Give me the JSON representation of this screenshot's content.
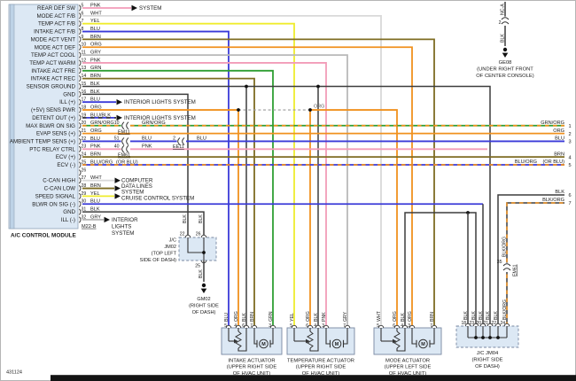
{
  "footer": {
    "code": "431124"
  },
  "colors": {
    "PNK": "#f29cb8",
    "WHT": "#d9d9d9",
    "YEL": "#efec2d",
    "BLU": "#3a3ad8",
    "BRN": "#7e6c22",
    "ORG": "#f0911e",
    "GRY": "#b9b9b9",
    "GRN": "#2f9e33",
    "BLK": "#3d3d3d"
  },
  "module": {
    "name": "A/C CONTROL MODULE",
    "connector_id": "M22-B",
    "pins": [
      {
        "pin": "5",
        "label": "REAR DEF SW",
        "color": "PNK",
        "dest": "rear_def"
      },
      {
        "pin": "6",
        "label": "MODE ACT F/B",
        "color": "WHT"
      },
      {
        "pin": "7",
        "label": "TEMP ACT F/B",
        "color": "YEL"
      },
      {
        "pin": "8",
        "label": "INTAKE ACT F/B",
        "color": "BLU"
      },
      {
        "pin": "9",
        "label": "MODE ACT VENT",
        "color": "BRN"
      },
      {
        "pin": "10",
        "label": "MODE ACT DEF",
        "color": "ORG"
      },
      {
        "pin": "11",
        "label": "TEMP ACT COOL",
        "color": "GRY"
      },
      {
        "pin": "12",
        "label": "TEMP ACT WARM",
        "color": "PNK"
      },
      {
        "pin": "13",
        "label": "INTAKE ACT FRE",
        "color": "GRN"
      },
      {
        "pin": "14",
        "label": "INTAKE ACT REC",
        "color": "BRN"
      },
      {
        "pin": "15",
        "label": "SENSOR GROUND",
        "color": "BLK"
      },
      {
        "pin": "16",
        "label": "GND",
        "color": "BLK"
      },
      {
        "pin": "17",
        "label": "ILL (+)",
        "color": "BLU",
        "dest": "interior_inline"
      },
      {
        "pin": "18",
        "label": "(+5V) SENS PWR",
        "color": "ORG",
        "mid_label": "ORG"
      },
      {
        "pin": "19",
        "label": "DETENT OUT (+)",
        "color": "BLU/BLK",
        "dest": "interior_inline"
      },
      {
        "pin": "20",
        "label": "MAX BLWR ON SIG",
        "color": "GRN/ORG",
        "relabels": [
          "GRN/ORG"
        ]
      },
      {
        "pin": "21",
        "label": "EVAP SENS (+)",
        "color": "ORG"
      },
      {
        "pin": "22",
        "label": "AMBIENT TEMP SENS (+)",
        "color": "BLU",
        "relabels": [
          "BLU",
          "BLU"
        ]
      },
      {
        "pin": "23",
        "label": "PTC RELAY CTRL",
        "color": "PNK",
        "relabels": [
          "PNK"
        ]
      },
      {
        "pin": "24",
        "label": "ECV (+)",
        "color": "BRN"
      },
      {
        "pin": "25",
        "label": "ECV (-)",
        "color": "BLU/ORG",
        "alt": "(OR BLU)"
      },
      {
        "pin": "26",
        "label": "",
        "color": ""
      },
      {
        "pin": "27",
        "label": "C-CAN HIGH",
        "color": "WHT",
        "dest": "computer_block"
      },
      {
        "pin": "28",
        "label": "C-CAN LOW",
        "color": "BRN",
        "dest": "computer_block"
      },
      {
        "pin": "29",
        "label": "SPEED SIGNAL",
        "color": "YEL",
        "dest": "cruise"
      },
      {
        "pin": "30",
        "label": "BLWR ON SIG (-)",
        "color": "BLU"
      },
      {
        "pin": "31",
        "label": "GND",
        "color": "BLK"
      },
      {
        "pin": "32",
        "label": "ILL (-)",
        "color": "GRY",
        "dest": "interior_block"
      }
    ]
  },
  "destinations": {
    "rear_def": "SYSTEM",
    "interior_inline": "INTERIOR LIGHTS SYSTEM",
    "computer_block": [
      "COMPUTER",
      "DATA LINES",
      "SYSTEM"
    ],
    "cruise": "CRUISE CONTROL SYSTEM",
    "interior_block": [
      "INTERIOR",
      "LIGHTS",
      "SYSTEM"
    ]
  },
  "inline_connectors": {
    "c10": {
      "num": "10",
      "name": "EM11"
    },
    "c51": {
      "num": "51",
      "name": ""
    },
    "c2": {
      "num": "2",
      "name": "EE11"
    },
    "c40": {
      "num": "40",
      "name": "EM61"
    },
    "c35": {
      "num": "35",
      "name": "EM61"
    },
    "ge08_conn": {
      "num": "2",
      "name": ""
    }
  },
  "right_edge": [
    {
      "pin": "1",
      "label": "GRN/ORG"
    },
    {
      "pin": "2",
      "label": "ORG"
    },
    {
      "pin": "3",
      "label": "BLU"
    },
    {
      "pin": "4",
      "label": "BRN"
    },
    {
      "pin": "5",
      "label": "BLU/ORG",
      "extra": "(OR BLU)"
    },
    {
      "pin": "6",
      "label": "BLK"
    },
    {
      "pin": "7",
      "label": "BLK/ORG"
    }
  ],
  "junctions": {
    "jm02": {
      "name": "J/C",
      "id": "JM02",
      "loc": [
        "(TOP LEFT",
        "SIDE OF DASH)"
      ],
      "top_pins": [
        "22",
        "26"
      ],
      "bottom_pin": "25",
      "wire": "BLK"
    },
    "jm04": {
      "name": "J/C JM04",
      "loc": [
        "(RIGHT SIDE",
        "OF DASH)"
      ],
      "pins": [
        {
          "num": "18",
          "color": "BLK"
        },
        {
          "num": "23",
          "color": "BLK"
        },
        {
          "num": "20",
          "color": "BLK"
        },
        {
          "num": "21",
          "color": "BLK"
        },
        {
          "num": "22",
          "color": "BLK"
        },
        {
          "num": "24",
          "color": "BLK/ORG"
        }
      ]
    }
  },
  "grounds": {
    "gm02": {
      "id": "GM02",
      "loc": [
        "(RIGHT SIDE",
        "OF DASH)"
      ]
    },
    "ge08": {
      "id": "GE08",
      "loc": [
        "(UNDER RIGHT FRONT",
        "OF CENTER CONSOLE)"
      ],
      "top_label": "NC-A",
      "wire": "BLK"
    }
  },
  "actuators": [
    {
      "id": "intake",
      "name": [
        "INTAKE ACTUATOR",
        "(UPPER RIGHT SIDE",
        "OF HVAC UNIT)"
      ],
      "pins": [
        {
          "num": "5",
          "color": "BLU"
        },
        {
          "num": "4",
          "color": "ORG"
        },
        {
          "num": "6",
          "color": "BLK"
        },
        {
          "num": "7",
          "color": "BRN"
        },
        {
          "num": "3",
          "color": "GRN"
        }
      ]
    },
    {
      "id": "temperature",
      "name": [
        "TEMPERATURE ACTUATOR",
        "(UPPER RIGHT SIDE",
        "OF HVAC UNIT)"
      ],
      "pins": [
        {
          "num": "5",
          "color": "YEL"
        },
        {
          "num": "6",
          "color": "ORG"
        },
        {
          "num": "4",
          "color": "BLK"
        },
        {
          "num": "3",
          "color": "PNK"
        },
        {
          "num": "7",
          "color": "GRY"
        }
      ]
    },
    {
      "id": "mode",
      "name": [
        "MODE ACTUATOR",
        "(UPPER LEFT SIDE",
        "OF HVAC UNIT)"
      ],
      "pins": [
        {
          "num": "5",
          "color": "WHT"
        },
        {
          "num": "6",
          "color": "ORG"
        },
        {
          "num": "4",
          "color": "BLK"
        },
        {
          "num": "3",
          "color": "ORG"
        },
        {
          "num": "7",
          "color": "BRN"
        }
      ]
    }
  ]
}
